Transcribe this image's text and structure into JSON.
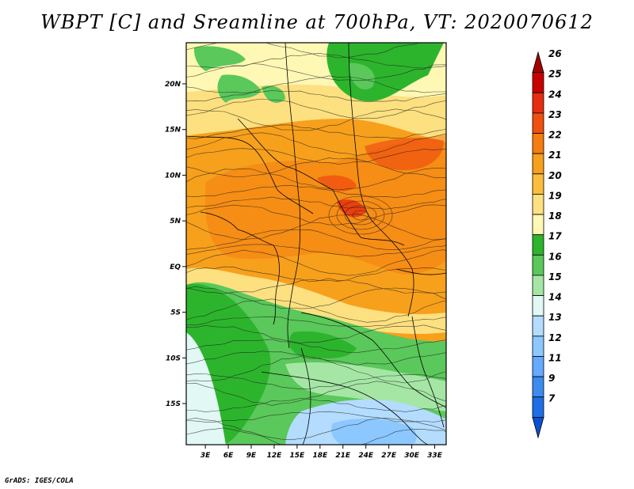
{
  "title": "WBPT [C] and Sreamline at 700hPa, VT: 2020070612",
  "credit": "GrADS: IGES/COLA",
  "map": {
    "lat_labels": [
      "20N",
      "15N",
      "10N",
      "5N",
      "EQ",
      "5S",
      "10S",
      "15S"
    ],
    "lat_values": [
      20,
      15,
      10,
      5,
      0,
      -5,
      -10,
      -15
    ],
    "lon_labels": [
      "3E",
      "6E",
      "9E",
      "12E",
      "15E",
      "18E",
      "21E",
      "24E",
      "27E",
      "30E",
      "33E"
    ],
    "lon_values": [
      3,
      6,
      9,
      12,
      15,
      18,
      21,
      24,
      27,
      30,
      33
    ],
    "lat_range": [
      -19.5,
      24.5
    ],
    "lon_range": [
      0.5,
      34.5
    ]
  },
  "colorbar": {
    "labels": [
      "26",
      "25",
      "24",
      "23",
      "22",
      "21",
      "20",
      "19",
      "18",
      "17",
      "16",
      "15",
      "14",
      "13",
      "12",
      "11",
      "9",
      "7"
    ],
    "colors": [
      "#a50000",
      "#c80000",
      "#e62d0f",
      "#f0500f",
      "#f57d10",
      "#f7a01c",
      "#fabe3c",
      "#fde080",
      "#fff8b4",
      "#2db42d",
      "#5ac85a",
      "#a5e6a5",
      "#e1f8f5",
      "#b4dcff",
      "#8cc8ff",
      "#64aaff",
      "#3c8cf0",
      "#1e6ee6",
      "#0a50d2"
    ]
  }
}
